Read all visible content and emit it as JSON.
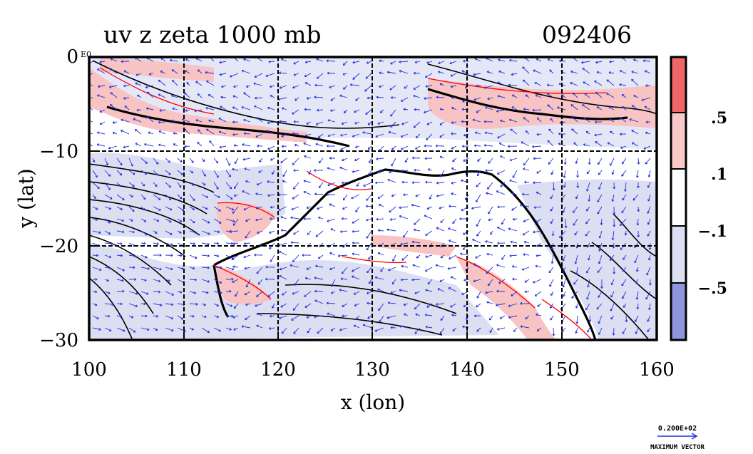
{
  "chart_data": {
    "type": "contour_vector_map",
    "title": "uv z zeta 1000 mb",
    "run_label": "092406",
    "xlabel": "x (lon)",
    "ylabel": "y (lat)",
    "xlim": [
      100,
      160
    ],
    "ylim": [
      -30,
      0
    ],
    "x_ticks": [
      100,
      110,
      120,
      130,
      140,
      150,
      160
    ],
    "y_ticks": [
      0,
      -10,
      -20,
      -30
    ],
    "y_tick_labels": [
      "0",
      "−10",
      "−20",
      "−30"
    ],
    "zero_tick_suffix": "E0",
    "grid": true,
    "colorbar": {
      "levels": [
        ".5",
        ".1",
        "−.1",
        "−.5"
      ],
      "bins": [
        {
          "range": "> .5",
          "color": "#ee6666"
        },
        {
          "range": ".1 to .5",
          "color": "#f9c9c9"
        },
        {
          "range": "−.1 to .1",
          "color": "#ffffff"
        },
        {
          "range": "−.5 to −.1",
          "color": "#dcdff2"
        },
        {
          "range": "< −.5",
          "color": "#8e95de"
        }
      ]
    },
    "vector_legend": {
      "value_label": "0.200E+02",
      "caption": "MAXIMUM VECTOR"
    },
    "colors": {
      "vectors": "#1f2fe0",
      "positive_contour": "#ff0000",
      "height_contour": "#000000",
      "positive_fill": "#f7c3c3",
      "negative_fill": "#dcdff2"
    }
  }
}
